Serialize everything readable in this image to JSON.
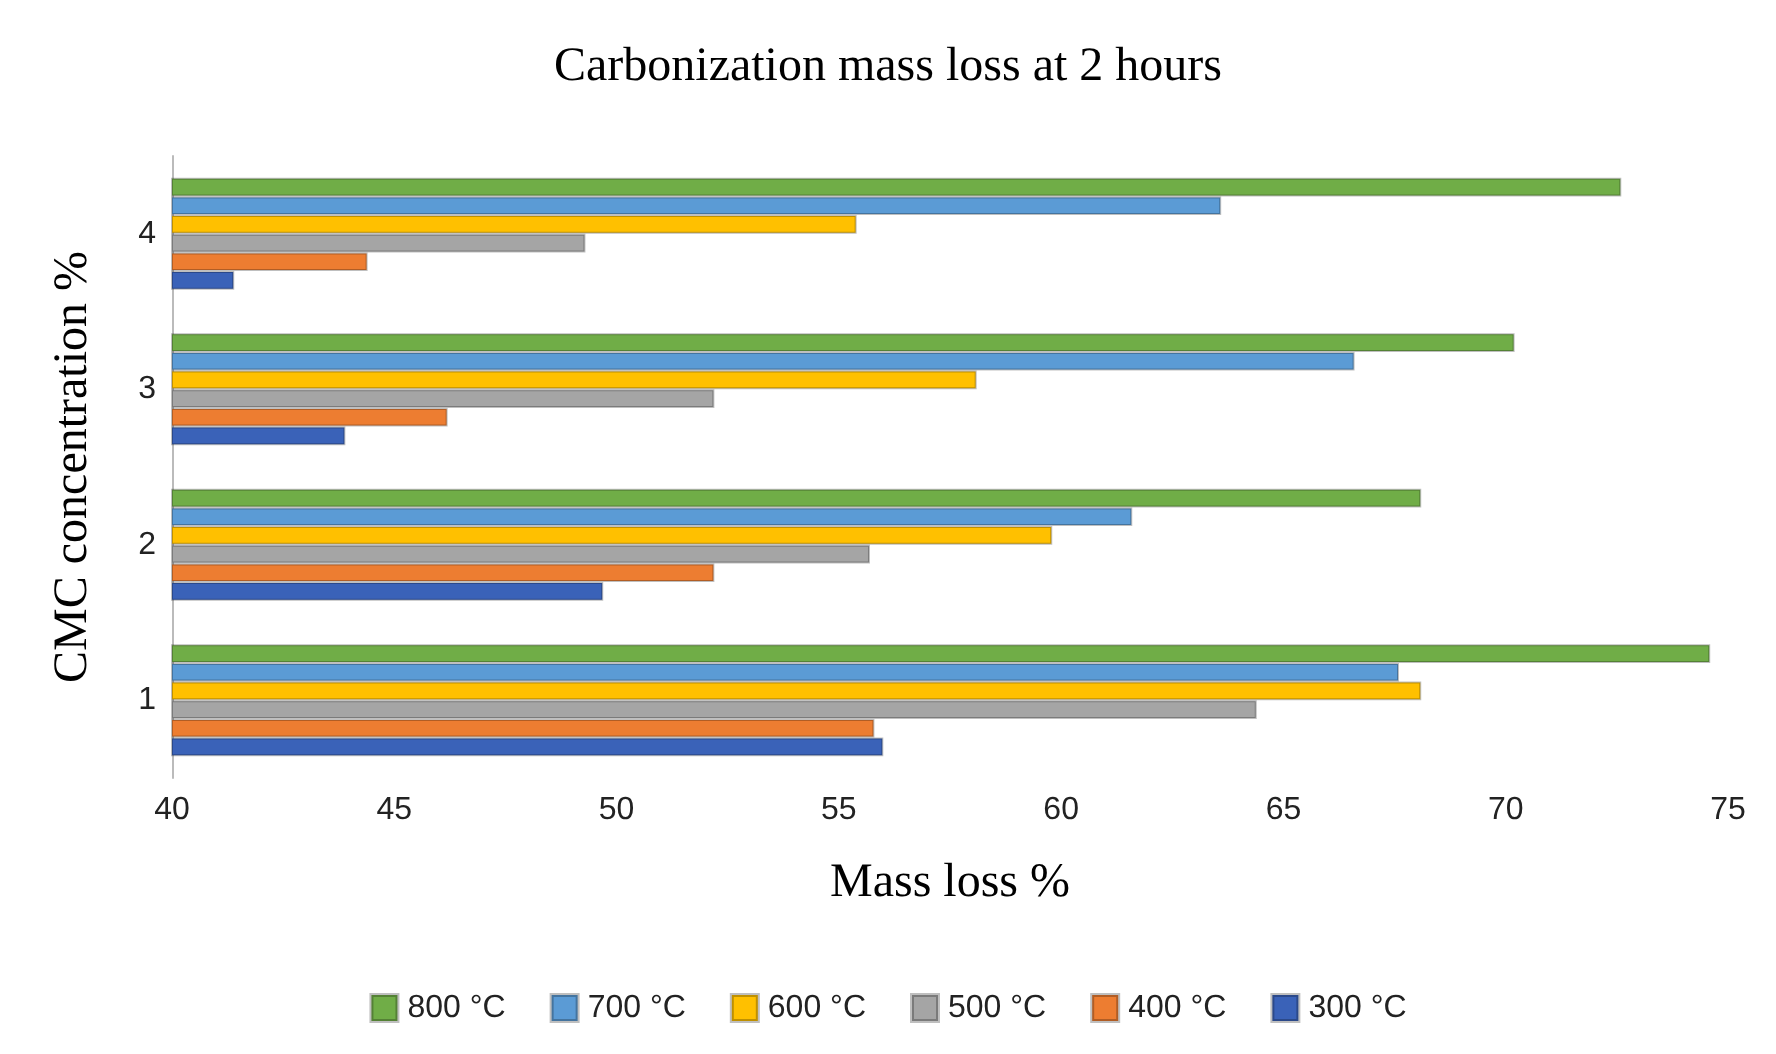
{
  "chart_data": {
    "type": "bar",
    "orientation": "horizontal",
    "title": "Carbonization mass loss at 2 hours",
    "xlabel": "Mass loss %",
    "ylabel": "CMC concentration %",
    "categories": [
      "4",
      "3",
      "2",
      "1"
    ],
    "series": [
      {
        "name": "800 °C",
        "color": "#70ad47",
        "values": [
          72.6,
          70.2,
          68.1,
          74.6
        ]
      },
      {
        "name": "700 °C",
        "color": "#5b9bd5",
        "values": [
          63.6,
          66.6,
          61.6,
          67.6
        ]
      },
      {
        "name": "600 °C",
        "color": "#ffc000",
        "values": [
          55.4,
          58.1,
          59.8,
          68.1
        ]
      },
      {
        "name": "500 °C",
        "color": "#a5a5a5",
        "values": [
          49.3,
          52.2,
          55.7,
          64.4
        ]
      },
      {
        "name": "400 °C",
        "color": "#ed7d31",
        "values": [
          44.4,
          46.2,
          52.2,
          55.8
        ]
      },
      {
        "name": "300 °C",
        "color": "#3a62b8",
        "values": [
          41.4,
          43.9,
          49.7,
          56.0
        ]
      }
    ],
    "xlim": [
      40,
      75
    ],
    "xticks": [
      40,
      45,
      50,
      55,
      60,
      65,
      70,
      75
    ],
    "grid": false,
    "legend": "bottom"
  }
}
